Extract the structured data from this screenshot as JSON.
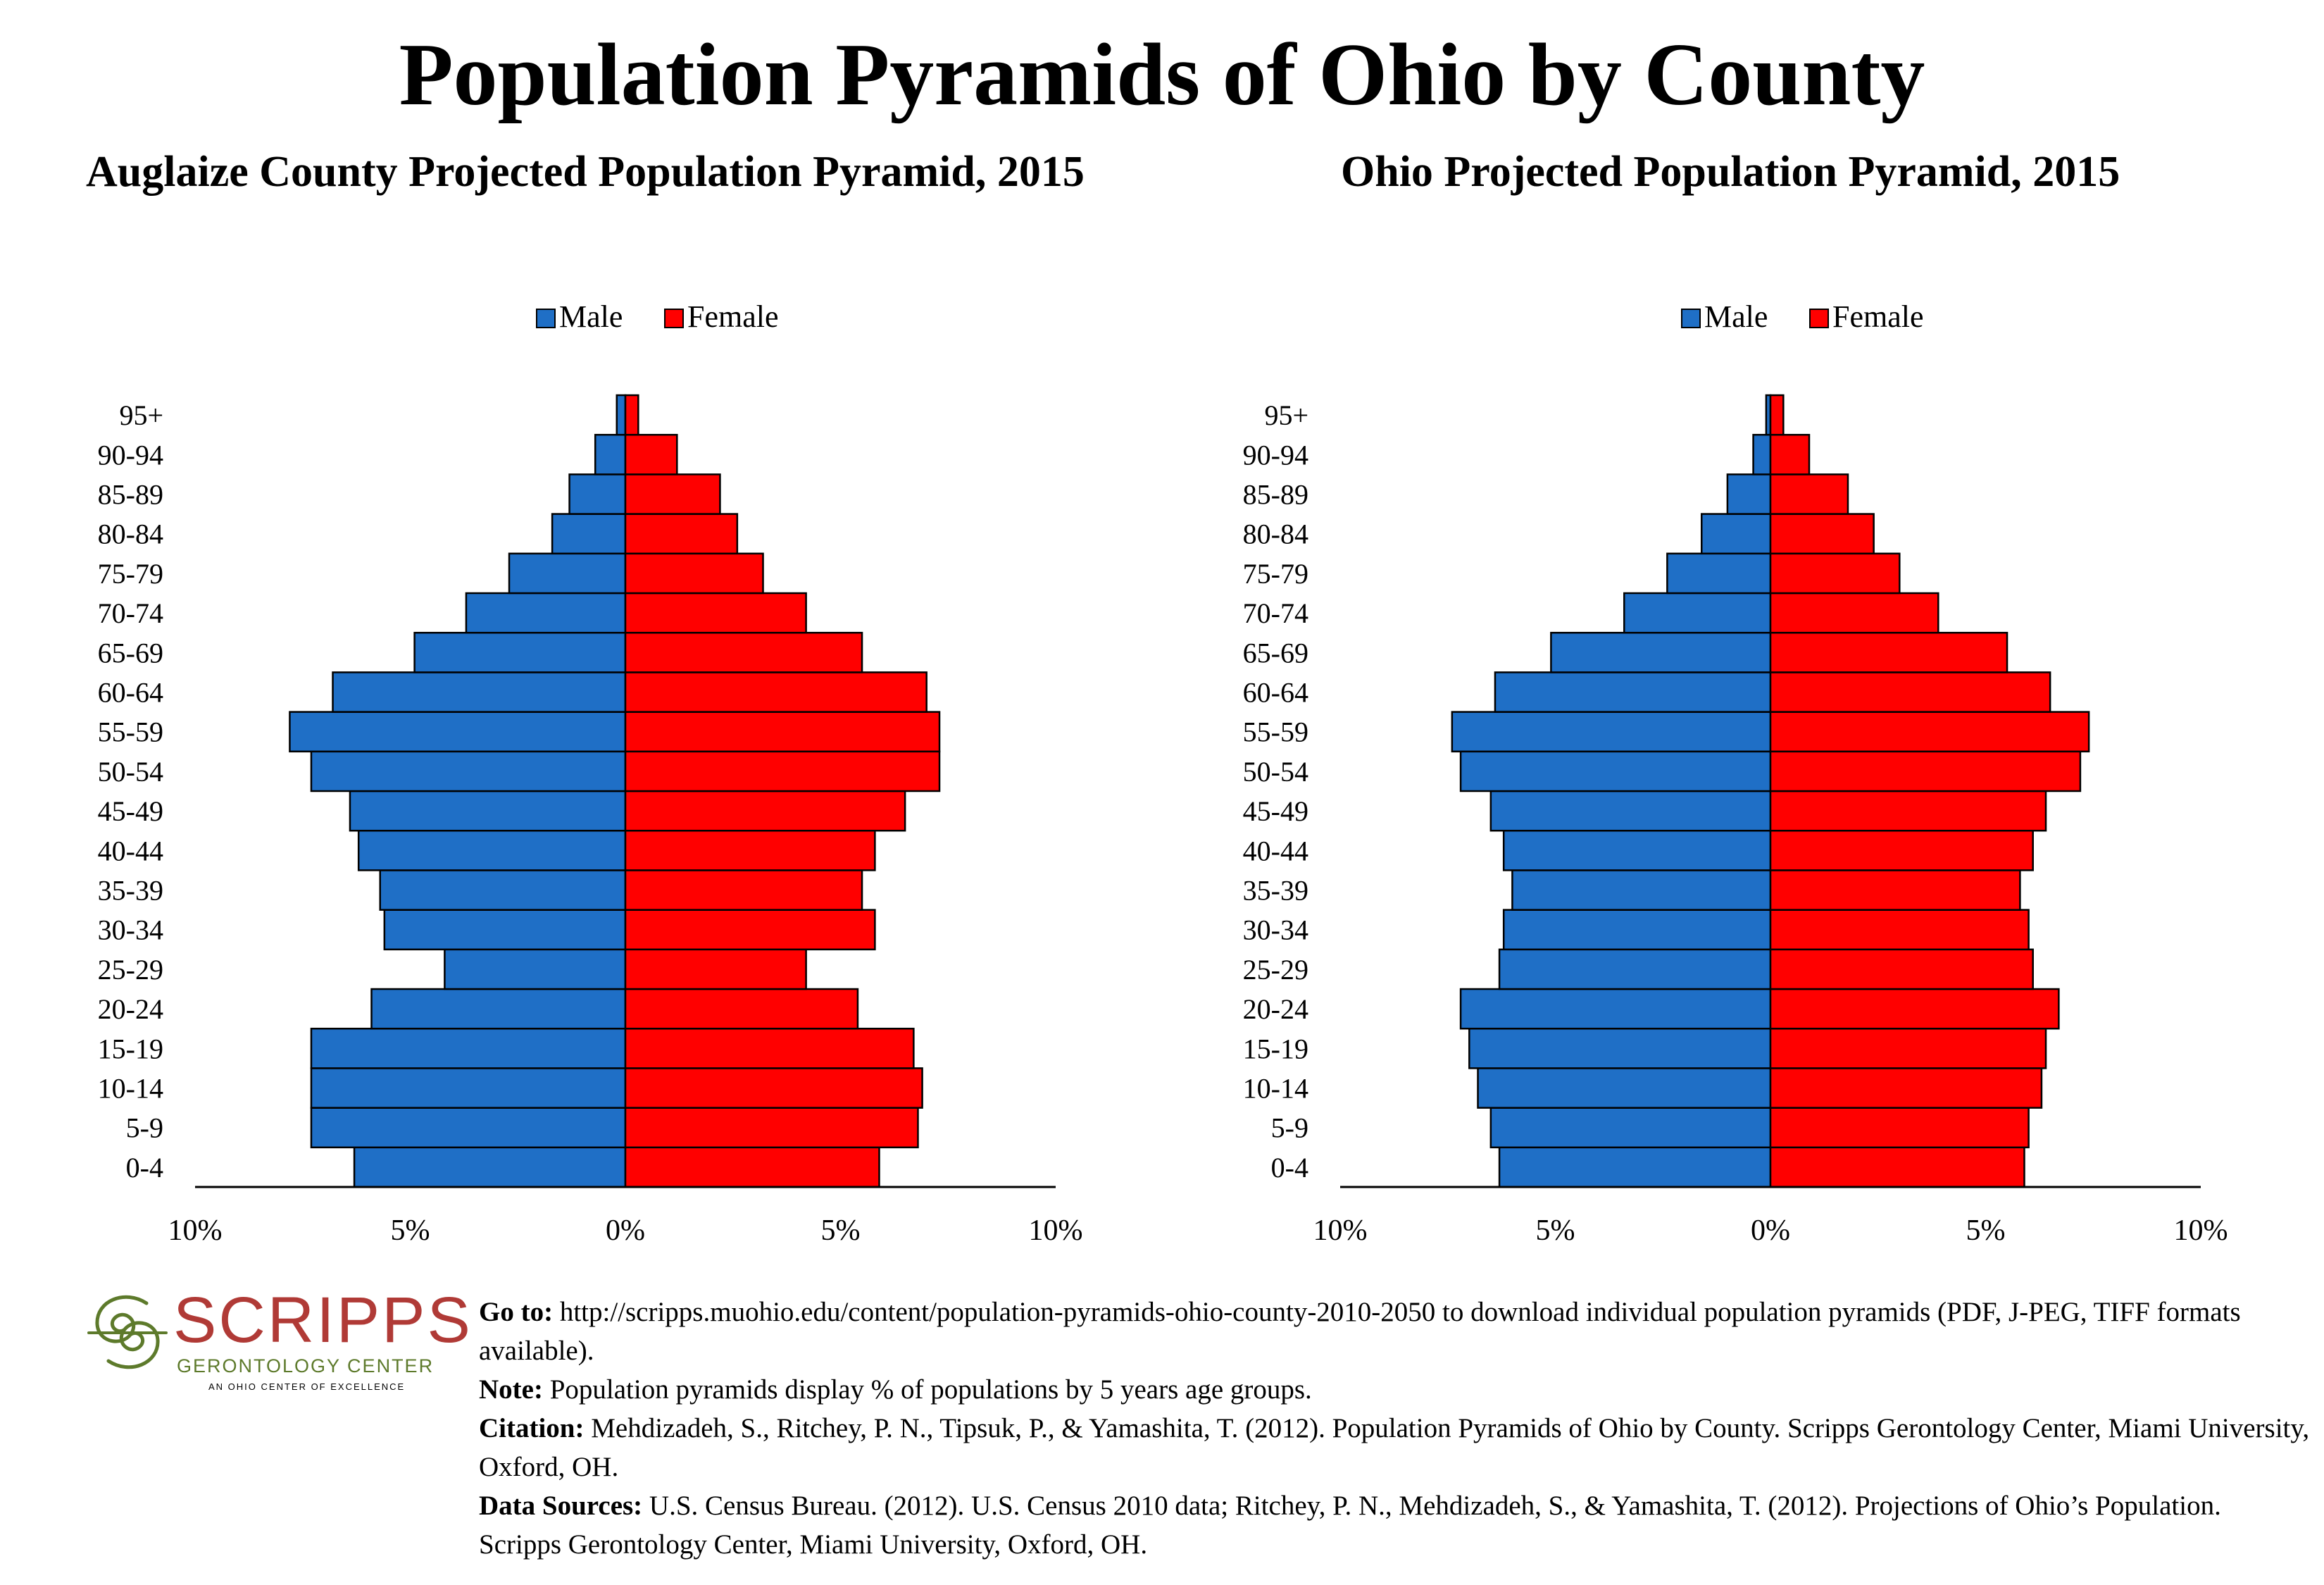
{
  "title": "Population Pyramids of Ohio by County",
  "legend": {
    "male": "Male",
    "female": "Female"
  },
  "colors": {
    "male": "#1f6fc6",
    "female": "#ff0000",
    "outline": "#000000"
  },
  "chart_data": [
    {
      "type": "bar",
      "orientation": "horizontal-pyramid",
      "title": "Auglaize County Projected Population Pyramid, 2015",
      "categories": [
        "0-4",
        "5-9",
        "10-14",
        "15-19",
        "20-24",
        "25-29",
        "30-34",
        "35-39",
        "40-44",
        "45-49",
        "50-54",
        "55-59",
        "60-64",
        "65-69",
        "70-74",
        "75-79",
        "80-84",
        "85-89",
        "90-94",
        "95+"
      ],
      "series": [
        {
          "name": "Male",
          "values": [
            6.3,
            7.3,
            7.3,
            7.3,
            5.9,
            4.2,
            5.6,
            5.7,
            6.2,
            6.4,
            7.3,
            7.8,
            6.8,
            4.9,
            3.7,
            2.7,
            1.7,
            1.3,
            0.7,
            0.2
          ]
        },
        {
          "name": "Female",
          "values": [
            5.9,
            6.8,
            6.9,
            6.7,
            5.4,
            4.2,
            5.8,
            5.5,
            5.8,
            6.5,
            7.3,
            7.3,
            7.0,
            5.5,
            4.2,
            3.2,
            2.6,
            2.2,
            1.2,
            0.3
          ]
        }
      ],
      "xlim": [
        -10,
        10
      ],
      "xticks": [
        "10%",
        "5%",
        "0%",
        "5%",
        "10%"
      ],
      "legend_position": "top"
    },
    {
      "type": "bar",
      "orientation": "horizontal-pyramid",
      "title": "Ohio Projected Population Pyramid, 2015",
      "categories": [
        "0-4",
        "5-9",
        "10-14",
        "15-19",
        "20-24",
        "25-29",
        "30-34",
        "35-39",
        "40-44",
        "45-49",
        "50-54",
        "55-59",
        "60-64",
        "65-69",
        "70-74",
        "75-79",
        "80-84",
        "85-89",
        "90-94",
        "95+"
      ],
      "series": [
        {
          "name": "Male",
          "values": [
            6.3,
            6.5,
            6.8,
            7.0,
            7.2,
            6.3,
            6.2,
            6.0,
            6.2,
            6.5,
            7.2,
            7.4,
            6.4,
            5.1,
            3.4,
            2.4,
            1.6,
            1.0,
            0.4,
            0.1
          ]
        },
        {
          "name": "Female",
          "values": [
            5.9,
            6.0,
            6.3,
            6.4,
            6.7,
            6.1,
            6.0,
            5.8,
            6.1,
            6.4,
            7.2,
            7.4,
            6.5,
            5.5,
            3.9,
            3.0,
            2.4,
            1.8,
            0.9,
            0.3
          ]
        }
      ],
      "xlim": [
        -10,
        10
      ],
      "xticks": [
        "10%",
        "5%",
        "0%",
        "5%",
        "10%"
      ],
      "legend_position": "top"
    }
  ],
  "logo": {
    "name": "SCRIPPS",
    "subtitle": "GERONTOLOGY CENTER",
    "tagline": "AN OHIO CENTER OF EXCELLENCE",
    "colors": {
      "red": "#b03a36",
      "green": "#5d7a2b"
    }
  },
  "notes": {
    "goto_label": "Go to:",
    "goto_text": " http://scripps.muohio.edu/content/population-pyramids-ohio-county-2010-2050 to download individual population pyramids (PDF, J-PEG, TIFF formats available).",
    "note_label": "Note:",
    "note_text": " Population pyramids display % of populations by 5 years age groups.",
    "citation_label": "Citation:",
    "citation_text": " Mehdizadeh, S., Ritchey, P. N., Tipsuk, P., & Yamashita, T. (2012). Population Pyramids of Ohio by County. Scripps Gerontology Center, Miami University, Oxford, OH.",
    "sources_label": "Data Sources:",
    "sources_text": " U.S. Census Bureau. (2012). U.S. Census 2010 data; Ritchey, P. N., Mehdizadeh, S., & Yamashita, T. (2012). Projections of Ohio’s Population. Scripps Gerontology Center, Miami University, Oxford, OH."
  }
}
